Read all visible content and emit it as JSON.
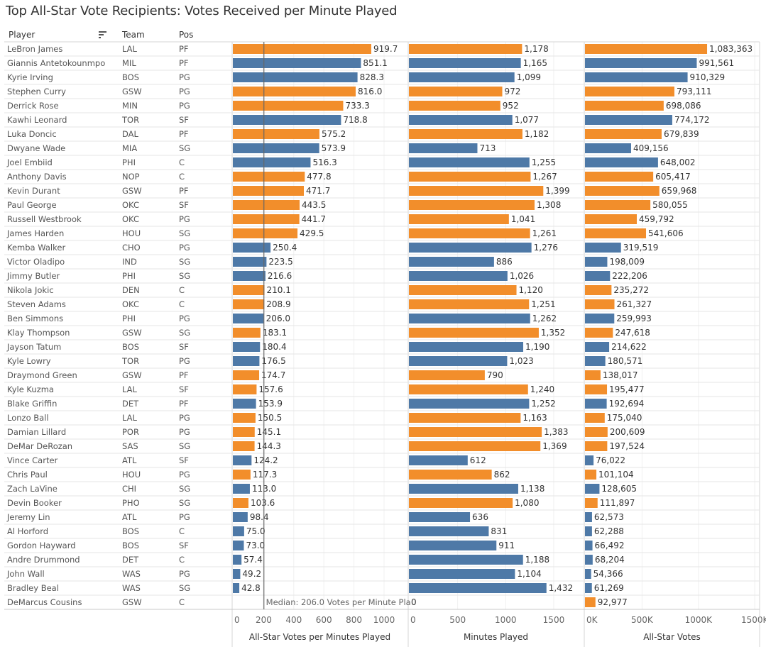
{
  "title": "Top All-Star Vote Recipients: Votes Received per Minute Played",
  "columns": {
    "player": "Player",
    "team": "Team",
    "pos": "Pos"
  },
  "colors": {
    "orange": "#F28E2B",
    "blue": "#4E79A7"
  },
  "chart_data": {
    "type": "bar",
    "orientation": "horizontal",
    "median_label": "Median: 206.0 Votes per Minute Pla",
    "median_value": 206.0,
    "panels": [
      {
        "key": "vpm",
        "title": "All-Star Votes per Minutes Played",
        "ticks": [
          "0",
          "200",
          "400",
          "600",
          "800",
          "1000"
        ],
        "tick_values": [
          0,
          200,
          400,
          600,
          800,
          1000
        ],
        "xlim": [
          0,
          1160
        ]
      },
      {
        "key": "min",
        "title": "Minutes Played",
        "ticks": [
          "0",
          "500",
          "1000",
          "1500"
        ],
        "tick_values": [
          0,
          500,
          1000,
          1500
        ],
        "xlim": [
          0,
          1820
        ]
      },
      {
        "key": "votes",
        "title": "All-Star Votes",
        "ticks": [
          "0K",
          "500K",
          "1000K",
          "1500K"
        ],
        "tick_values": [
          0,
          500000,
          1000000,
          1500000
        ],
        "xlim": [
          0,
          1560000
        ]
      }
    ],
    "rows": [
      {
        "player": "LeBron James",
        "team": "LAL",
        "pos": "PF",
        "vpm": 919.7,
        "min": 1178,
        "votes": 1083363,
        "color": "orange"
      },
      {
        "player": "Giannis Antetokounmpo",
        "team": "MIL",
        "pos": "PF",
        "vpm": 851.1,
        "min": 1165,
        "votes": 991561,
        "color": "blue"
      },
      {
        "player": "Kyrie Irving",
        "team": "BOS",
        "pos": "PG",
        "vpm": 828.3,
        "min": 1099,
        "votes": 910329,
        "color": "blue"
      },
      {
        "player": "Stephen Curry",
        "team": "GSW",
        "pos": "PG",
        "vpm": 816.0,
        "min": 972,
        "votes": 793111,
        "color": "orange"
      },
      {
        "player": "Derrick Rose",
        "team": "MIN",
        "pos": "PG",
        "vpm": 733.3,
        "min": 952,
        "votes": 698086,
        "color": "orange"
      },
      {
        "player": "Kawhi Leonard",
        "team": "TOR",
        "pos": "SF",
        "vpm": 718.8,
        "min": 1077,
        "votes": 774172,
        "color": "blue"
      },
      {
        "player": "Luka Doncic",
        "team": "DAL",
        "pos": "PF",
        "vpm": 575.2,
        "min": 1182,
        "votes": 679839,
        "color": "orange"
      },
      {
        "player": "Dwyane Wade",
        "team": "MIA",
        "pos": "SG",
        "vpm": 573.9,
        "min": 713,
        "votes": 409156,
        "color": "blue"
      },
      {
        "player": "Joel Embiid",
        "team": "PHI",
        "pos": "C",
        "vpm": 516.3,
        "min": 1255,
        "votes": 648002,
        "color": "blue"
      },
      {
        "player": "Anthony Davis",
        "team": "NOP",
        "pos": "C",
        "vpm": 477.8,
        "min": 1267,
        "votes": 605417,
        "color": "orange"
      },
      {
        "player": "Kevin Durant",
        "team": "GSW",
        "pos": "PF",
        "vpm": 471.7,
        "min": 1399,
        "votes": 659968,
        "color": "orange"
      },
      {
        "player": "Paul George",
        "team": "OKC",
        "pos": "SF",
        "vpm": 443.5,
        "min": 1308,
        "votes": 580055,
        "color": "orange"
      },
      {
        "player": "Russell Westbrook",
        "team": "OKC",
        "pos": "PG",
        "vpm": 441.7,
        "min": 1041,
        "votes": 459792,
        "color": "orange"
      },
      {
        "player": "James Harden",
        "team": "HOU",
        "pos": "SG",
        "vpm": 429.5,
        "min": 1261,
        "votes": 541606,
        "color": "orange"
      },
      {
        "player": "Kemba Walker",
        "team": "CHO",
        "pos": "PG",
        "vpm": 250.4,
        "min": 1276,
        "votes": 319519,
        "color": "blue"
      },
      {
        "player": "Victor Oladipo",
        "team": "IND",
        "pos": "SG",
        "vpm": 223.5,
        "min": 886,
        "votes": 198009,
        "color": "blue"
      },
      {
        "player": "Jimmy Butler",
        "team": "PHI",
        "pos": "SG",
        "vpm": 216.6,
        "min": 1026,
        "votes": 222206,
        "color": "blue"
      },
      {
        "player": "Nikola Jokic",
        "team": "DEN",
        "pos": "C",
        "vpm": 210.1,
        "min": 1120,
        "votes": 235272,
        "color": "orange"
      },
      {
        "player": "Steven Adams",
        "team": "OKC",
        "pos": "C",
        "vpm": 208.9,
        "min": 1251,
        "votes": 261327,
        "color": "orange"
      },
      {
        "player": "Ben Simmons",
        "team": "PHI",
        "pos": "PG",
        "vpm": 206.0,
        "min": 1262,
        "votes": 259993,
        "color": "blue"
      },
      {
        "player": "Klay Thompson",
        "team": "GSW",
        "pos": "SG",
        "vpm": 183.1,
        "min": 1352,
        "votes": 247618,
        "color": "orange"
      },
      {
        "player": "Jayson Tatum",
        "team": "BOS",
        "pos": "SF",
        "vpm": 180.4,
        "min": 1190,
        "votes": 214622,
        "color": "blue"
      },
      {
        "player": "Kyle Lowry",
        "team": "TOR",
        "pos": "PG",
        "vpm": 176.5,
        "min": 1023,
        "votes": 180571,
        "color": "blue"
      },
      {
        "player": "Draymond Green",
        "team": "GSW",
        "pos": "PF",
        "vpm": 174.7,
        "min": 790,
        "votes": 138017,
        "color": "orange"
      },
      {
        "player": "Kyle Kuzma",
        "team": "LAL",
        "pos": "SF",
        "vpm": 157.6,
        "min": 1240,
        "votes": 195477,
        "color": "orange"
      },
      {
        "player": "Blake Griffin",
        "team": "DET",
        "pos": "PF",
        "vpm": 153.9,
        "min": 1252,
        "votes": 192694,
        "color": "blue"
      },
      {
        "player": "Lonzo Ball",
        "team": "LAL",
        "pos": "PG",
        "vpm": 150.5,
        "min": 1163,
        "votes": 175040,
        "color": "orange"
      },
      {
        "player": "Damian Lillard",
        "team": "POR",
        "pos": "PG",
        "vpm": 145.1,
        "min": 1383,
        "votes": 200609,
        "color": "orange"
      },
      {
        "player": "DeMar DeRozan",
        "team": "SAS",
        "pos": "SG",
        "vpm": 144.3,
        "min": 1369,
        "votes": 197524,
        "color": "orange"
      },
      {
        "player": "Vince Carter",
        "team": "ATL",
        "pos": "SF",
        "vpm": 124.2,
        "min": 612,
        "votes": 76022,
        "color": "blue"
      },
      {
        "player": "Chris Paul",
        "team": "HOU",
        "pos": "PG",
        "vpm": 117.3,
        "min": 862,
        "votes": 101104,
        "color": "orange"
      },
      {
        "player": "Zach LaVine",
        "team": "CHI",
        "pos": "SG",
        "vpm": 113.0,
        "min": 1138,
        "votes": 128605,
        "color": "blue"
      },
      {
        "player": "Devin Booker",
        "team": "PHO",
        "pos": "SG",
        "vpm": 103.6,
        "min": 1080,
        "votes": 111897,
        "color": "orange"
      },
      {
        "player": "Jeremy Lin",
        "team": "ATL",
        "pos": "PG",
        "vpm": 98.4,
        "min": 636,
        "votes": 62573,
        "color": "blue"
      },
      {
        "player": "Al Horford",
        "team": "BOS",
        "pos": "C",
        "vpm": 75.0,
        "min": 831,
        "votes": 62288,
        "color": "blue"
      },
      {
        "player": "Gordon Hayward",
        "team": "BOS",
        "pos": "SF",
        "vpm": 73.0,
        "min": 911,
        "votes": 66492,
        "color": "blue"
      },
      {
        "player": "Andre Drummond",
        "team": "DET",
        "pos": "C",
        "vpm": 57.4,
        "min": 1188,
        "votes": 68204,
        "color": "blue"
      },
      {
        "player": "John Wall",
        "team": "WAS",
        "pos": "PG",
        "vpm": 49.2,
        "min": 1104,
        "votes": 54366,
        "color": "blue"
      },
      {
        "player": "Bradley Beal",
        "team": "WAS",
        "pos": "SG",
        "vpm": 42.8,
        "min": 1432,
        "votes": 61269,
        "color": "blue"
      },
      {
        "player": "DeMarcus Cousins",
        "team": "GSW",
        "pos": "C",
        "vpm": null,
        "min": 0,
        "votes": 92977,
        "color": "orange"
      }
    ]
  }
}
